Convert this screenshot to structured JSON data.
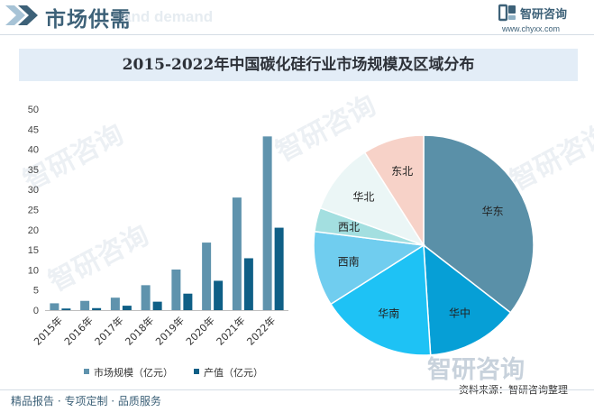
{
  "header": {
    "title": "市场供需",
    "ghost_text": "and demand",
    "brand_name": "智研咨询",
    "brand_url": "www.chyxx.com"
  },
  "watermark": {
    "text": "智研咨询"
  },
  "chart_data": [
    {
      "type": "bar",
      "title": "2015-2022年中国碳化硅行业市场规模及区域分布",
      "categories": [
        "2015年",
        "2016年",
        "2017年",
        "2018年",
        "2019年",
        "2020年",
        "2021年",
        "2022年"
      ],
      "series": [
        {
          "name": "市场规模（亿元）",
          "color": "#5f93ad",
          "values": [
            1.7,
            2.3,
            3.1,
            6.2,
            10.1,
            16.8,
            28.0,
            43.2
          ]
        },
        {
          "name": "产值（亿元）",
          "color": "#0f5f86",
          "values": [
            0.4,
            0.5,
            1.1,
            2.1,
            4.1,
            7.3,
            12.9,
            20.5
          ]
        }
      ],
      "yticks": [
        "0",
        "5",
        "10",
        "15",
        "20",
        "25",
        "30",
        "35",
        "40",
        "45",
        "50"
      ],
      "ylim": [
        0,
        50
      ],
      "grid": false,
      "legend": "bottom"
    },
    {
      "type": "pie",
      "slices": [
        {
          "label": "华东",
          "value": 35.5,
          "color": "#5a90a8"
        },
        {
          "label": "华中",
          "value": 13.5,
          "color": "#069fd6"
        },
        {
          "label": "华南",
          "value": 17.0,
          "color": "#1ec2f5"
        },
        {
          "label": "西南",
          "value": 11.0,
          "color": "#70cdef"
        },
        {
          "label": "西北",
          "value": 3.5,
          "color": "#a3dfe0"
        },
        {
          "label": "华北",
          "value": 10.5,
          "color": "#ebf6f6"
        },
        {
          "label": "东北",
          "value": 9.0,
          "color": "#f7d2c8"
        }
      ],
      "legend": "none"
    }
  ],
  "footer": {
    "left_text": "精品报告 · 专项定制 · 品质服务",
    "source": "资料来源：智研咨询整理"
  }
}
